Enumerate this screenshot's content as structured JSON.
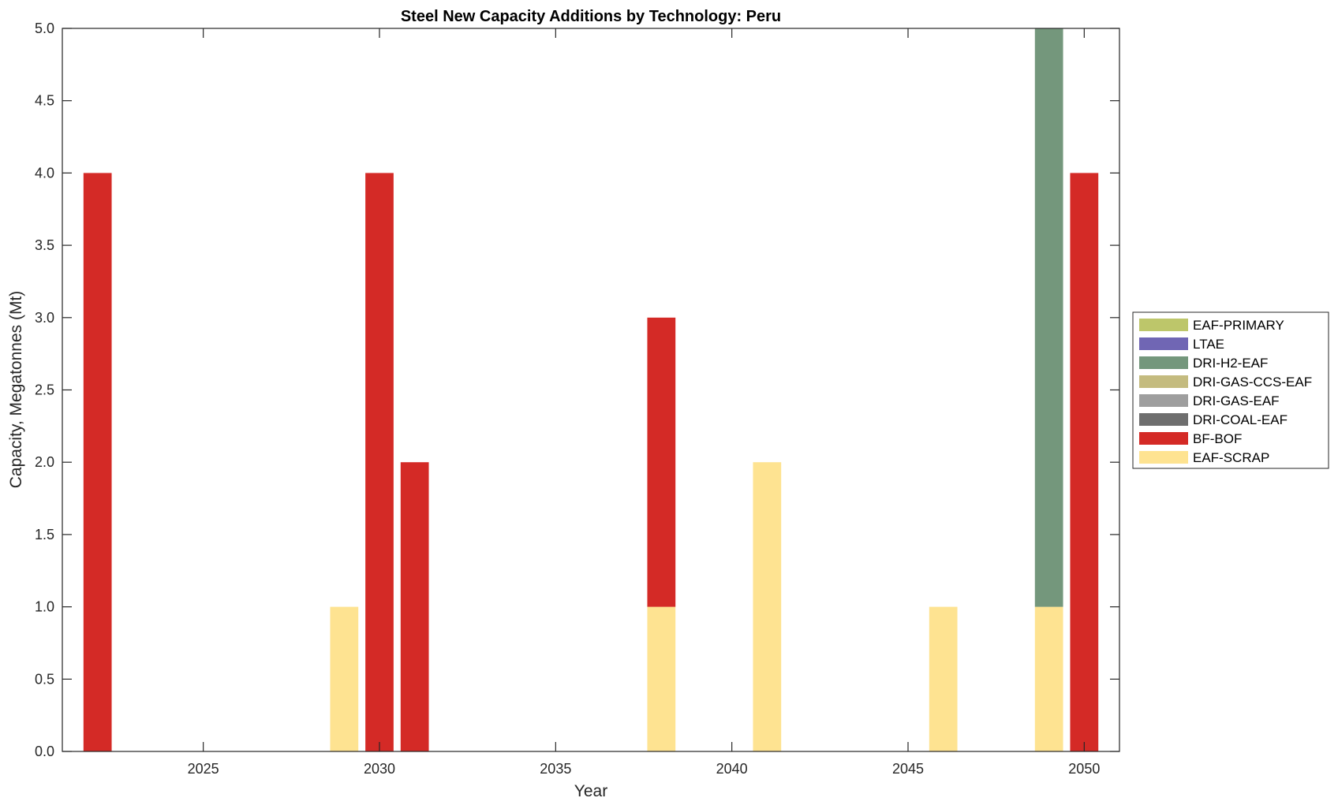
{
  "chart_data": {
    "type": "bar",
    "stacked": true,
    "title": "Steel New Capacity Additions by Technology: Peru",
    "xlabel": "Year",
    "ylabel": "Capacity, Megatonnes (Mt)",
    "xlim": [
      2021,
      2051
    ],
    "ylim": [
      0,
      5
    ],
    "xticks": [
      2025,
      2030,
      2035,
      2040,
      2045,
      2050
    ],
    "yticks": [
      "0.0",
      "0.5",
      "1.0",
      "1.5",
      "2.0",
      "2.5",
      "3.0",
      "3.5",
      "4.0",
      "4.5",
      "5.0"
    ],
    "grid": false,
    "legend_position": "right",
    "x": [
      2022,
      2029,
      2030,
      2031,
      2038,
      2041,
      2046,
      2049,
      2050
    ],
    "series": [
      {
        "name": "EAF-SCRAP",
        "color": "#FEE391",
        "values": [
          0,
          1,
          0,
          0,
          1,
          2,
          1,
          1,
          0
        ]
      },
      {
        "name": "BF-BOF",
        "color": "#D42A26",
        "values": [
          4,
          0,
          4,
          2,
          2,
          0,
          0,
          0,
          4
        ]
      },
      {
        "name": "DRI-COAL-EAF",
        "color": "#6E6E6E",
        "values": [
          0,
          0,
          0,
          0,
          0,
          0,
          0,
          0,
          0
        ]
      },
      {
        "name": "DRI-GAS-EAF",
        "color": "#9E9E9E",
        "values": [
          0,
          0,
          0,
          0,
          0,
          0,
          0,
          0,
          0
        ]
      },
      {
        "name": "DRI-GAS-CCS-EAF",
        "color": "#C4BB7F",
        "values": [
          0,
          0,
          0,
          0,
          0,
          0,
          0,
          0,
          0
        ]
      },
      {
        "name": "DRI-H2-EAF",
        "color": "#74977C",
        "values": [
          0,
          0,
          0,
          0,
          0,
          0,
          0,
          4,
          0
        ]
      },
      {
        "name": "LTAE",
        "color": "#7066B4",
        "values": [
          0,
          0,
          0,
          0,
          0,
          0,
          0,
          0,
          0
        ]
      },
      {
        "name": "EAF-PRIMARY",
        "color": "#BDC66A",
        "values": [
          0,
          0,
          0,
          0,
          0,
          0,
          0,
          0,
          0
        ]
      }
    ],
    "legend_order": [
      "EAF-PRIMARY",
      "LTAE",
      "DRI-H2-EAF",
      "DRI-GAS-CCS-EAF",
      "DRI-GAS-EAF",
      "DRI-COAL-EAF",
      "BF-BOF",
      "EAF-SCRAP"
    ]
  }
}
